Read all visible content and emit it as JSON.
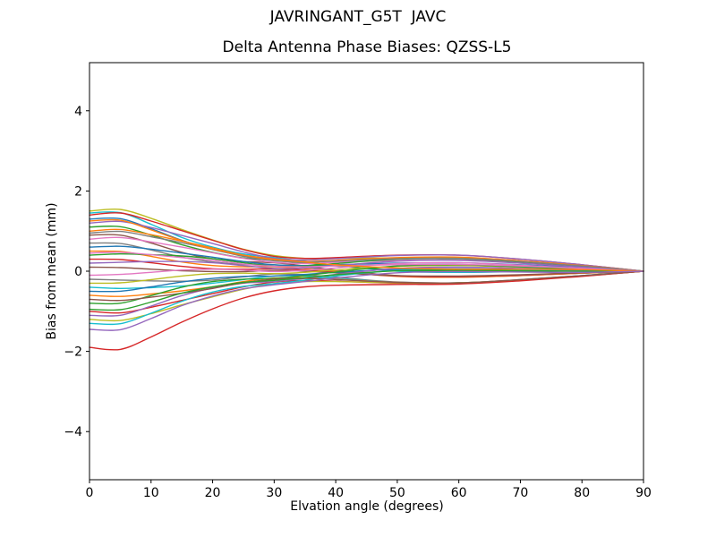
{
  "chart_data": {
    "type": "line",
    "title": "JAVRINGANT_G5T  JAVC",
    "subtitle": "Delta Antenna Phase Biases: QZSS-L5",
    "xlabel": "Elvation angle (degrees)",
    "ylabel": "Bias from mean (mm)",
    "xlim": [
      0,
      90
    ],
    "ylim": [
      -5.2,
      5.2
    ],
    "xticks": [
      0,
      10,
      20,
      30,
      40,
      50,
      60,
      70,
      80,
      90
    ],
    "yticks": [
      -4,
      -2,
      0,
      2,
      4
    ],
    "grid": false,
    "legend": "none",
    "x": [
      0,
      5,
      10,
      15,
      20,
      25,
      30,
      35,
      40,
      50,
      60,
      70,
      80,
      90
    ],
    "series": [
      {
        "name": "s01",
        "color": "#bcbd22",
        "values": [
          1.5,
          1.54,
          1.32,
          1.04,
          0.78,
          0.55,
          0.39,
          0.32,
          0.32,
          0.33,
          0.33,
          0.25,
          0.14,
          0
        ]
      },
      {
        "name": "s02",
        "color": "#17becf",
        "values": [
          1.45,
          1.46,
          1.17,
          0.84,
          0.6,
          0.43,
          0.34,
          0.25,
          0.15,
          0,
          -0.03,
          -0.01,
          0.01,
          0
        ]
      },
      {
        "name": "s03",
        "color": "#d62728",
        "values": [
          1.4,
          1.45,
          1.25,
          1.01,
          0.77,
          0.54,
          0.37,
          0.32,
          0.34,
          0.4,
          0.4,
          0.3,
          0.16,
          0
        ]
      },
      {
        "name": "s04",
        "color": "#1f77b4",
        "values": [
          1.3,
          1.31,
          1.06,
          0.77,
          0.54,
          0.39,
          0.31,
          0.23,
          0.14,
          0.02,
          -0.01,
          0,
          0.02,
          0
        ]
      },
      {
        "name": "s05",
        "color": "#9467bd",
        "values": [
          1.2,
          1.24,
          1.09,
          0.89,
          0.69,
          0.48,
          0.32,
          0.28,
          0.31,
          0.39,
          0.4,
          0.3,
          0.16,
          0
        ]
      },
      {
        "name": "s06",
        "color": "#2ca02c",
        "values": [
          1.1,
          1.11,
          0.9,
          0.66,
          0.47,
          0.33,
          0.27,
          0.2,
          0.13,
          0.03,
          0.01,
          0.01,
          0.02,
          0
        ]
      },
      {
        "name": "s07",
        "color": "#ff7f0e",
        "values": [
          1,
          1.04,
          0.91,
          0.75,
          0.58,
          0.4,
          0.27,
          0.24,
          0.27,
          0.34,
          0.35,
          0.26,
          0.14,
          0
        ]
      },
      {
        "name": "s08",
        "color": "#8c564b",
        "values": [
          0.9,
          0.9,
          0.7,
          0.47,
          0.31,
          0.24,
          0.21,
          0.13,
          0.03,
          -0.11,
          -0.14,
          -0.1,
          -0.05,
          0
        ]
      },
      {
        "name": "s09",
        "color": "#e377c2",
        "values": [
          0.8,
          0.84,
          0.73,
          0.6,
          0.46,
          0.32,
          0.22,
          0.19,
          0.22,
          0.27,
          0.28,
          0.21,
          0.11,
          0
        ]
      },
      {
        "name": "s10",
        "color": "#7f7f7f",
        "values": [
          0.7,
          0.69,
          0.53,
          0.35,
          0.23,
          0.17,
          0.16,
          0.1,
          0.01,
          -0.12,
          -0.15,
          -0.11,
          -0.05,
          0
        ]
      },
      {
        "name": "s11",
        "color": "#1f77b4",
        "values": [
          0.6,
          0.62,
          0.55,
          0.45,
          0.35,
          0.24,
          0.16,
          0.14,
          0.16,
          0.2,
          0.21,
          0.16,
          0.09,
          0
        ]
      },
      {
        "name": "s12",
        "color": "#ff7f0e",
        "values": [
          0.5,
          0.49,
          0.37,
          0.23,
          0.14,
          0.11,
          0.11,
          0.06,
          -0.01,
          -0.13,
          -0.15,
          -0.11,
          -0.05,
          0
        ]
      },
      {
        "name": "s13",
        "color": "#2ca02c",
        "values": [
          0.4,
          0.43,
          0.41,
          0.38,
          0.31,
          0.21,
          0.12,
          0.13,
          0.19,
          0.3,
          0.31,
          0.23,
          0.12,
          0
        ]
      },
      {
        "name": "s14",
        "color": "#d62728",
        "values": [
          0.3,
          0.29,
          0.21,
          0.12,
          0.06,
          0.05,
          0.06,
          0.03,
          -0.03,
          -0.12,
          -0.14,
          -0.1,
          -0.04,
          0
        ]
      },
      {
        "name": "s15",
        "color": "#9467bd",
        "values": [
          0.2,
          0.22,
          0.24,
          0.24,
          0.21,
          0.14,
          0.07,
          0.08,
          0.14,
          0.25,
          0.27,
          0.2,
          0.1,
          0
        ]
      },
      {
        "name": "s16",
        "color": "#8c564b",
        "values": [
          0.1,
          0.09,
          0.05,
          0.01,
          -0.01,
          -0.01,
          0.02,
          0,
          -0.04,
          -0.11,
          -0.12,
          -0.09,
          -0.04,
          0
        ]
      },
      {
        "name": "s17",
        "color": "#e377c2",
        "values": [
          -0.1,
          -0.08,
          -0.03,
          0.03,
          0.05,
          0.03,
          -0.01,
          0.02,
          0.08,
          0.19,
          0.21,
          0.15,
          0.07,
          0
        ]
      },
      {
        "name": "s18",
        "color": "#7f7f7f",
        "values": [
          -0.2,
          -0.22,
          -0.24,
          -0.25,
          -0.22,
          -0.14,
          -0.07,
          -0.09,
          -0.15,
          -0.27,
          -0.29,
          -0.21,
          -0.11,
          0
        ]
      },
      {
        "name": "s19",
        "color": "#bcbd22",
        "values": [
          -0.3,
          -0.29,
          -0.21,
          -0.12,
          -0.06,
          -0.05,
          -0.06,
          -0.03,
          0.03,
          0.12,
          0.14,
          0.1,
          0.04,
          0
        ]
      },
      {
        "name": "s20",
        "color": "#17becf",
        "values": [
          -0.4,
          -0.43,
          -0.41,
          -0.37,
          -0.3,
          -0.21,
          -0.12,
          -0.12,
          -0.18,
          -0.28,
          -0.29,
          -0.22,
          -0.11,
          0
        ]
      },
      {
        "name": "s21",
        "color": "#1f77b4",
        "values": [
          -0.5,
          -0.5,
          -0.39,
          -0.27,
          -0.18,
          -0.13,
          -0.12,
          -0.08,
          -0.03,
          0.05,
          0.06,
          0.05,
          0.02,
          0
        ]
      },
      {
        "name": "s22",
        "color": "#ff7f0e",
        "values": [
          -0.6,
          -0.63,
          -0.57,
          -0.49,
          -0.39,
          -0.26,
          -0.17,
          -0.16,
          -0.2,
          -0.28,
          -0.3,
          -0.22,
          -0.12,
          0
        ]
      },
      {
        "name": "s23",
        "color": "#2ca02c",
        "values": [
          -0.8,
          -0.8,
          -0.61,
          -0.4,
          -0.26,
          -0.2,
          -0.18,
          -0.11,
          -0.02,
          0.13,
          0.16,
          0.11,
          0.05,
          0
        ]
      },
      {
        "name": "s24",
        "color": "#d62728",
        "values": [
          -1,
          -1.04,
          -0.9,
          -0.73,
          -0.56,
          -0.39,
          -0.27,
          -0.23,
          -0.25,
          -0.3,
          -0.31,
          -0.23,
          -0.12,
          0
        ]
      },
      {
        "name": "s25",
        "color": "#9467bd",
        "values": [
          -1.1,
          -1.1,
          -0.87,
          -0.61,
          -0.42,
          -0.3,
          -0.26,
          -0.18,
          -0.08,
          0.07,
          0.1,
          0.07,
          0.02,
          0
        ]
      },
      {
        "name": "s26",
        "color": "#bcbd22",
        "values": [
          -1.2,
          -1.23,
          -1.06,
          -0.84,
          -0.64,
          -0.45,
          -0.31,
          -0.26,
          -0.26,
          -0.29,
          -0.29,
          -0.22,
          -0.12,
          0
        ]
      },
      {
        "name": "s27",
        "color": "#17becf",
        "values": [
          -1.3,
          -1.31,
          -1.05,
          -0.75,
          -0.52,
          -0.38,
          -0.31,
          -0.22,
          -0.12,
          0.02,
          0.05,
          0.03,
          0,
          0
        ]
      },
      {
        "name": "s28",
        "color": "#d62728",
        "values": [
          -1.9,
          -1.95,
          -1.64,
          -1.27,
          -0.94,
          -0.67,
          -0.49,
          -0.39,
          -0.35,
          -0.33,
          -0.32,
          -0.24,
          -0.13,
          0
        ]
      },
      {
        "name": "s29",
        "color": "#7f7f7f",
        "values": [
          0.95,
          0.99,
          0.86,
          0.71,
          0.55,
          0.37,
          0.26,
          0.23,
          0.25,
          0.31,
          0.32,
          0.24,
          0.13,
          0
        ]
      },
      {
        "name": "s30",
        "color": "#8c564b",
        "values": [
          -0.7,
          -0.73,
          -0.65,
          -0.55,
          -0.43,
          -0.29,
          -0.2,
          -0.18,
          -0.21,
          -0.28,
          -0.29,
          -0.21,
          -0.11,
          0
        ]
      },
      {
        "name": "s31",
        "color": "#e377c2",
        "values": [
          0.45,
          0.47,
          0.41,
          0.34,
          0.27,
          0.18,
          0.12,
          0.11,
          0.13,
          0.16,
          0.17,
          0.13,
          0.07,
          0
        ]
      },
      {
        "name": "s32",
        "color": "#2ca02c",
        "values": [
          -0.95,
          -0.96,
          -0.77,
          -0.55,
          -0.39,
          -0.28,
          -0.23,
          -0.16,
          -0.09,
          0.01,
          0.03,
          0.01,
          0,
          0
        ]
      },
      {
        "name": "s33",
        "color": "#ff7f0e",
        "values": [
          1.25,
          1.27,
          1.03,
          0.76,
          0.55,
          0.4,
          0.3,
          0.23,
          0.16,
          0.08,
          0.05,
          0.05,
          0.04,
          0
        ]
      },
      {
        "name": "s34",
        "color": "#9467bd",
        "values": [
          -1.45,
          -1.46,
          -1.18,
          -0.86,
          -0.62,
          -0.44,
          -0.34,
          -0.26,
          -0.17,
          -0.04,
          -0.01,
          -0.02,
          -0.03,
          0
        ]
      }
    ],
    "colors": {
      "axes": "#000000",
      "background": "#ffffff",
      "text": "#000000"
    }
  }
}
